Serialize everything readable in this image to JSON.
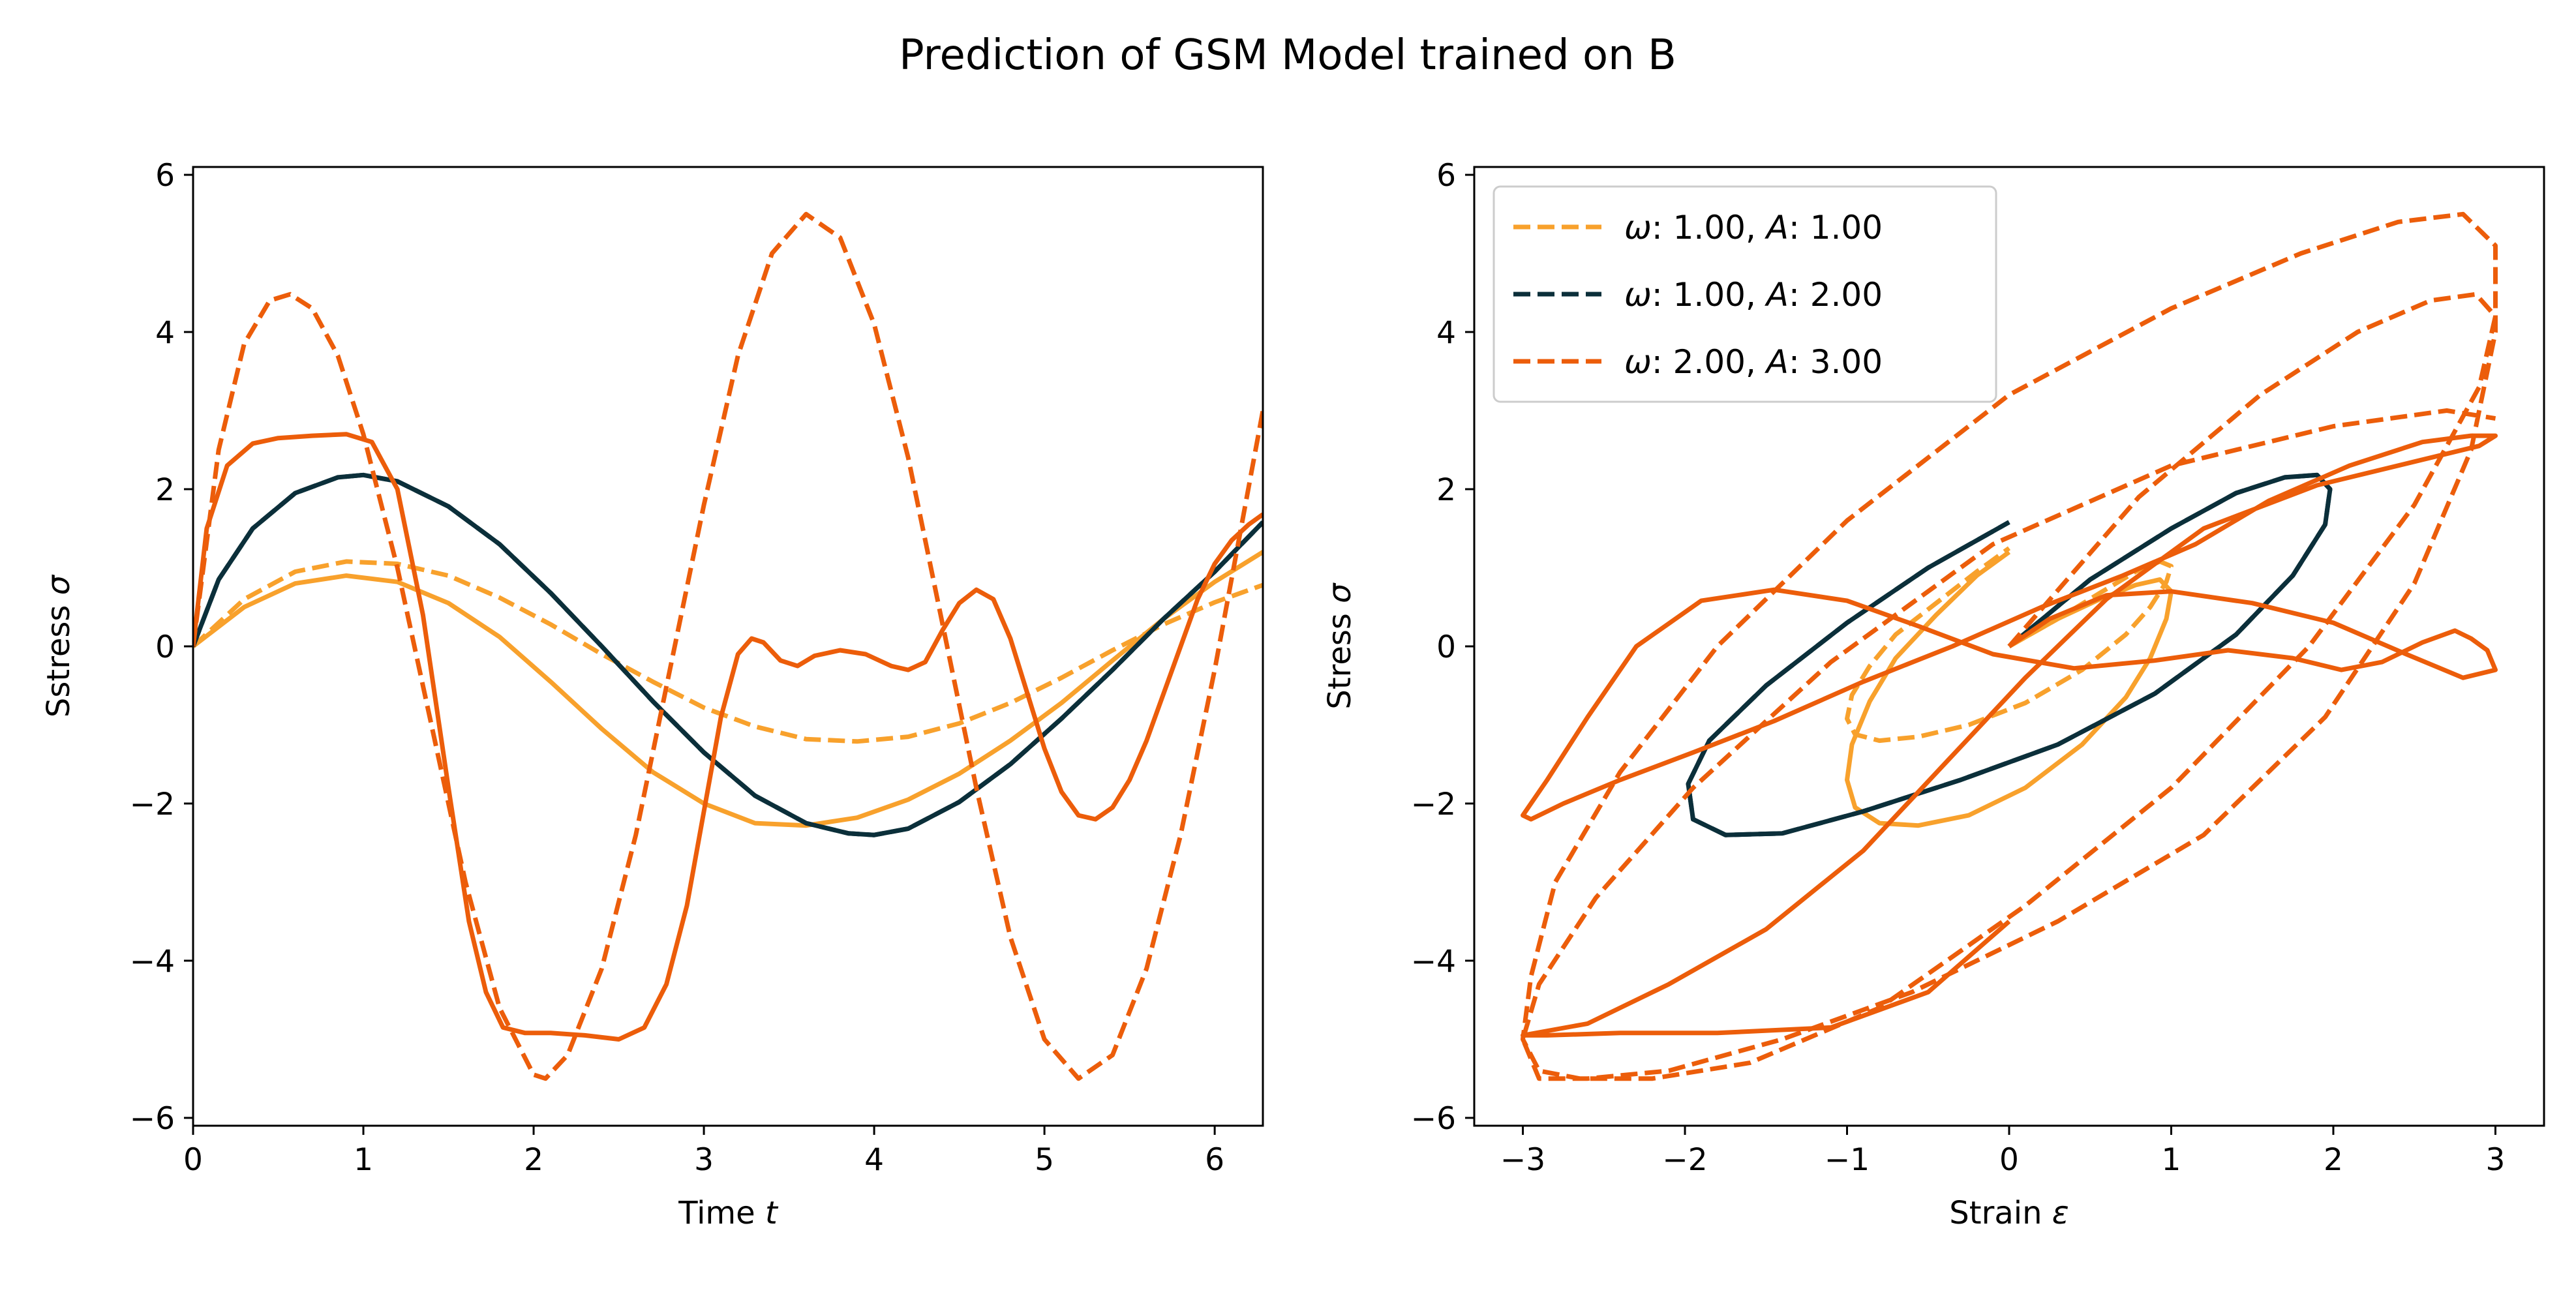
{
  "figure": {
    "suptitle": "Prediction of GSM Model trained on B"
  },
  "chart_data": [
    {
      "type": "line",
      "xlabel": "Time t",
      "ylabel": "Sstress σ",
      "xlim": [
        0,
        6.283
      ],
      "ylim": [
        -6.1,
        6.1
      ],
      "xticks": [
        0,
        1,
        2,
        3,
        4,
        5,
        6
      ],
      "yticks": [
        -6,
        -4,
        -2,
        0,
        2,
        4,
        6
      ],
      "grid": false,
      "series": [
        {
          "color": "#F8A12C",
          "style": "dashed",
          "x": [
            0,
            0.3,
            0.6,
            0.9,
            1.2,
            1.5,
            1.8,
            2.1,
            2.4,
            2.7,
            3.0,
            3.3,
            3.6,
            3.9,
            4.2,
            4.5,
            4.8,
            5.1,
            5.4,
            5.7,
            6.0,
            6.283
          ],
          "y": [
            0,
            0.6,
            0.95,
            1.08,
            1.05,
            0.9,
            0.62,
            0.28,
            -0.1,
            -0.45,
            -0.78,
            -1.02,
            -1.18,
            -1.21,
            -1.15,
            -0.98,
            -0.72,
            -0.4,
            -0.05,
            0.28,
            0.56,
            0.78
          ]
        },
        {
          "color": "#F8A12C",
          "style": "solid",
          "x": [
            0,
            0.3,
            0.6,
            0.9,
            1.2,
            1.5,
            1.8,
            2.1,
            2.4,
            2.7,
            3.0,
            3.3,
            3.6,
            3.9,
            4.2,
            4.5,
            4.8,
            5.1,
            5.4,
            5.7,
            6.0,
            6.283
          ],
          "y": [
            0,
            0.5,
            0.8,
            0.9,
            0.82,
            0.55,
            0.12,
            -0.45,
            -1.05,
            -1.6,
            -2.0,
            -2.25,
            -2.28,
            -2.18,
            -1.95,
            -1.62,
            -1.2,
            -0.72,
            -0.18,
            0.35,
            0.82,
            1.2
          ]
        },
        {
          "color": "#0B2F3A",
          "style": "dashed",
          "x": [
            0,
            0.15,
            0.35,
            0.6,
            0.85,
            1.0,
            1.2,
            1.5,
            1.8,
            2.1,
            2.4,
            2.7,
            3.0,
            3.3,
            3.6,
            3.85,
            4.0,
            4.2,
            4.5,
            4.8,
            5.1,
            5.4,
            5.7,
            6.0,
            6.283
          ],
          "y": [
            0,
            0.85,
            1.5,
            1.95,
            2.15,
            2.18,
            2.1,
            1.78,
            1.3,
            0.68,
            0.0,
            -0.7,
            -1.35,
            -1.9,
            -2.25,
            -2.38,
            -2.4,
            -2.32,
            -1.98,
            -1.5,
            -0.92,
            -0.3,
            0.35,
            0.95,
            1.58
          ]
        },
        {
          "color": "#0B2F3A",
          "style": "solid",
          "x": [
            0,
            0.15,
            0.35,
            0.6,
            0.85,
            1.0,
            1.2,
            1.5,
            1.8,
            2.1,
            2.4,
            2.7,
            3.0,
            3.3,
            3.6,
            3.85,
            4.0,
            4.2,
            4.5,
            4.8,
            5.1,
            5.4,
            5.7,
            6.0,
            6.283
          ],
          "y": [
            0,
            0.85,
            1.5,
            1.95,
            2.15,
            2.18,
            2.1,
            1.78,
            1.3,
            0.68,
            0.0,
            -0.7,
            -1.35,
            -1.9,
            -2.25,
            -2.38,
            -2.4,
            -2.32,
            -1.98,
            -1.5,
            -0.92,
            -0.3,
            0.35,
            0.95,
            1.58
          ]
        },
        {
          "color": "#EC5D0A",
          "style": "dashed",
          "x": [
            0,
            0.15,
            0.3,
            0.45,
            0.57,
            0.7,
            0.85,
            1.0,
            1.2,
            1.4,
            1.6,
            1.8,
            2.0,
            2.07,
            2.2,
            2.4,
            2.6,
            2.8,
            3.0,
            3.2,
            3.4,
            3.6,
            3.8,
            4.0,
            4.2,
            4.4,
            4.6,
            4.8,
            5.0,
            5.2,
            5.4,
            5.6,
            5.8,
            6.0,
            6.283
          ],
          "y": [
            0,
            2.5,
            3.85,
            4.4,
            4.48,
            4.3,
            3.7,
            2.7,
            1.0,
            -1.0,
            -3.0,
            -4.6,
            -5.45,
            -5.5,
            -5.2,
            -4.1,
            -2.4,
            -0.3,
            1.8,
            3.7,
            5.0,
            5.5,
            5.2,
            4.1,
            2.4,
            0.3,
            -1.8,
            -3.7,
            -5.0,
            -5.5,
            -5.2,
            -4.1,
            -2.4,
            -0.3,
            3.0
          ]
        },
        {
          "color": "#EC5D0A",
          "style": "solid",
          "x": [
            0,
            0.08,
            0.2,
            0.35,
            0.5,
            0.7,
            0.9,
            1.05,
            1.2,
            1.35,
            1.5,
            1.62,
            1.72,
            1.82,
            1.95,
            2.1,
            2.3,
            2.5,
            2.65,
            2.78,
            2.9,
            3.0,
            3.1,
            3.2,
            3.28,
            3.35,
            3.45,
            3.55,
            3.65,
            3.8,
            3.95,
            4.1,
            4.2,
            4.3,
            4.4,
            4.5,
            4.6,
            4.7,
            4.8,
            4.9,
            5.0,
            5.1,
            5.2,
            5.3,
            5.4,
            5.5,
            5.6,
            5.7,
            5.8,
            5.9,
            6.0,
            6.1,
            6.2,
            6.283
          ],
          "y": [
            0,
            1.5,
            2.3,
            2.58,
            2.65,
            2.68,
            2.7,
            2.6,
            2.0,
            0.4,
            -1.8,
            -3.5,
            -4.4,
            -4.85,
            -4.92,
            -4.92,
            -4.95,
            -5.0,
            -4.85,
            -4.3,
            -3.3,
            -2.1,
            -0.9,
            -0.1,
            0.1,
            0.05,
            -0.18,
            -0.25,
            -0.12,
            -0.05,
            -0.1,
            -0.25,
            -0.3,
            -0.2,
            0.2,
            0.55,
            0.72,
            0.6,
            0.1,
            -0.6,
            -1.3,
            -1.85,
            -2.15,
            -2.2,
            -2.05,
            -1.7,
            -1.2,
            -0.6,
            0.0,
            0.6,
            1.05,
            1.35,
            1.55,
            1.68
          ]
        }
      ]
    },
    {
      "type": "line",
      "xlabel": "Strain ε",
      "ylabel": "Stress σ",
      "xlim": [
        -3.3,
        3.3
      ],
      "ylim": [
        -6.1,
        6.1
      ],
      "xticks": [
        -3,
        -2,
        -1,
        0,
        1,
        2,
        3
      ],
      "yticks": [
        -6,
        -4,
        -2,
        0,
        2,
        4,
        6
      ],
      "grid": false,
      "legend": "top-left",
      "legend_entries": [
        {
          "label": "ω: 1.00, A: 1.00",
          "color": "#F8A12C",
          "style": "dashed"
        },
        {
          "label": "ω: 1.00, A: 2.00",
          "color": "#0B2F3A",
          "style": "dashed"
        },
        {
          "label": "ω: 2.00, A: 3.00",
          "color": "#EC5D0A",
          "style": "dashed"
        }
      ],
      "series": [
        {
          "color": "#F8A12C",
          "style": "dashed",
          "x": [
            0,
            0.3,
            0.56,
            0.78,
            0.93,
            1.0,
            0.97,
            0.87,
            0.72,
            0.45,
            0.1,
            -0.25,
            -0.56,
            -0.8,
            -0.95,
            -1.0,
            -0.97,
            -0.86,
            -0.7,
            -0.45,
            -0.2,
            0
          ],
          "y": [
            0,
            0.35,
            0.68,
            0.95,
            1.08,
            1.02,
            0.82,
            0.5,
            0.15,
            -0.3,
            -0.72,
            -1.0,
            -1.15,
            -1.2,
            -1.12,
            -0.92,
            -0.62,
            -0.25,
            0.15,
            0.55,
            0.95,
            1.25
          ]
        },
        {
          "color": "#F8A12C",
          "style": "solid",
          "x": [
            0,
            0.3,
            0.56,
            0.78,
            0.93,
            1.0,
            0.97,
            0.87,
            0.72,
            0.45,
            0.1,
            -0.25,
            -0.56,
            -0.8,
            -0.95,
            -1.0,
            -0.97,
            -0.86,
            -0.7,
            -0.45,
            -0.2,
            0
          ],
          "y": [
            0,
            0.35,
            0.6,
            0.78,
            0.85,
            0.7,
            0.35,
            -0.15,
            -0.65,
            -1.25,
            -1.8,
            -2.15,
            -2.28,
            -2.25,
            -2.05,
            -1.7,
            -1.25,
            -0.7,
            -0.15,
            0.4,
            0.9,
            1.2
          ]
        },
        {
          "color": "#0B2F3A",
          "style": "dashed",
          "x": [
            0,
            0.5,
            1.0,
            1.4,
            1.7,
            1.9,
            1.98,
            1.95,
            1.75,
            1.4,
            0.9,
            0.3,
            -0.3,
            -0.9,
            -1.4,
            -1.75,
            -1.95,
            -1.98,
            -1.85,
            -1.5,
            -1.0,
            -0.5,
            0
          ],
          "y": [
            0,
            0.85,
            1.5,
            1.95,
            2.15,
            2.18,
            2.0,
            1.55,
            0.9,
            0.15,
            -0.6,
            -1.25,
            -1.7,
            -2.1,
            -2.38,
            -2.4,
            -2.2,
            -1.75,
            -1.2,
            -0.5,
            0.3,
            1.0,
            1.58
          ]
        },
        {
          "color": "#0B2F3A",
          "style": "solid",
          "x": [
            0,
            0.5,
            1.0,
            1.4,
            1.7,
            1.9,
            1.98,
            1.95,
            1.75,
            1.4,
            0.9,
            0.3,
            -0.3,
            -0.9,
            -1.4,
            -1.75,
            -1.95,
            -1.98,
            -1.85,
            -1.5,
            -1.0,
            -0.5,
            0
          ],
          "y": [
            0,
            0.85,
            1.5,
            1.95,
            2.15,
            2.18,
            2.0,
            1.55,
            0.9,
            0.15,
            -0.6,
            -1.25,
            -1.7,
            -2.1,
            -2.38,
            -2.4,
            -2.2,
            -1.75,
            -1.2,
            -0.5,
            0.3,
            1.0,
            1.58
          ]
        },
        {
          "color": "#EC5D0A",
          "style": "dashed",
          "x": [
            0,
            0.8,
            1.55,
            2.15,
            2.6,
            2.88,
            3.0,
            2.9,
            2.5,
            1.85,
            1.0,
            0.1,
            -0.8,
            -1.6,
            -2.2,
            -2.65,
            -2.9,
            -3.0,
            -2.95,
            -2.8,
            -2.4,
            -1.8,
            -1.0,
            0.0,
            1.0,
            1.8,
            2.4,
            2.8,
            3.0,
            3.0,
            2.85,
            2.5,
            1.95,
            1.2,
            0.3,
            -0.6,
            -1.4,
            -2.1,
            -2.6,
            -2.9,
            -3.0,
            -2.9,
            -2.55,
            -1.95,
            -1.1,
            -0.1,
            1.0,
            2.0,
            2.7,
            3.0
          ],
          "y": [
            0,
            1.9,
            3.2,
            4.0,
            4.4,
            4.48,
            4.2,
            3.3,
            1.8,
            0.0,
            -1.8,
            -3.3,
            -4.6,
            -5.3,
            -5.5,
            -5.5,
            -5.4,
            -5.0,
            -4.2,
            -3.0,
            -1.6,
            0.0,
            1.6,
            3.2,
            4.3,
            5.0,
            5.4,
            5.5,
            5.1,
            4.0,
            2.5,
            0.8,
            -0.9,
            -2.4,
            -3.5,
            -4.4,
            -5.0,
            -5.4,
            -5.5,
            -5.5,
            -5.0,
            -4.3,
            -3.2,
            -1.8,
            -0.2,
            1.3,
            2.3,
            2.8,
            3.0,
            2.9
          ]
        },
        {
          "color": "#EC5D0A",
          "style": "solid",
          "x": [
            0,
            0.25,
            0.6,
            1.0,
            1.5,
            2.0,
            2.45,
            2.8,
            3.0,
            2.95,
            2.85,
            2.75,
            2.55,
            2.3,
            2.05,
            1.75,
            1.35,
            0.9,
            0.4,
            -0.1,
            -0.55,
            -1.0,
            -1.45,
            -1.9,
            -2.3,
            -2.6,
            -2.85,
            -3.0,
            -2.95,
            -2.75,
            -2.4,
            -1.95,
            -1.45,
            -0.9,
            -0.35,
            0.2,
            0.7,
            1.15,
            1.6,
            2.1,
            2.55,
            2.85,
            3.0,
            2.9,
            2.5,
            1.9,
            1.2,
            0.6,
            0.1,
            -0.4,
            -0.9,
            -1.5,
            -2.1,
            -2.6,
            -3.0,
            -2.85,
            -2.4,
            -1.8,
            -1.1,
            -0.5,
            0
          ],
          "y": [
            0,
            0.35,
            0.65,
            0.7,
            0.55,
            0.3,
            -0.1,
            -0.4,
            -0.3,
            -0.05,
            0.1,
            0.2,
            0.05,
            -0.2,
            -0.3,
            -0.15,
            -0.05,
            -0.18,
            -0.28,
            -0.1,
            0.25,
            0.58,
            0.72,
            0.58,
            0.0,
            -0.9,
            -1.7,
            -2.15,
            -2.2,
            -2.0,
            -1.7,
            -1.35,
            -0.95,
            -0.45,
            0.0,
            0.5,
            0.9,
            1.3,
            1.85,
            2.3,
            2.6,
            2.68,
            2.68,
            2.55,
            2.35,
            2.05,
            1.5,
            0.6,
            -0.4,
            -1.5,
            -2.6,
            -3.6,
            -4.3,
            -4.8,
            -4.95,
            -4.95,
            -4.92,
            -4.92,
            -4.85,
            -4.4,
            -3.5
          ]
        }
      ]
    }
  ]
}
